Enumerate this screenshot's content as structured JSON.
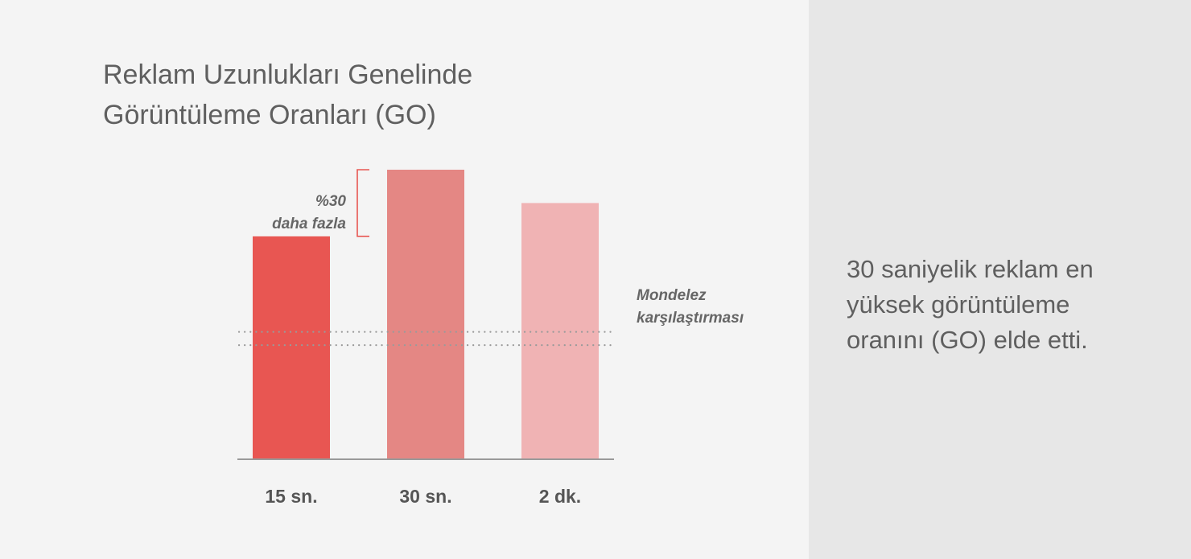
{
  "chart_data": {
    "type": "bar",
    "title_lines": [
      "Reklam Uzunlukları Genelinde",
      "Görüntüleme Oranları (GO)"
    ],
    "categories": [
      "15 sn.",
      "30 sn.",
      "2 dk."
    ],
    "values": [
      1.0,
      1.3,
      1.15
    ],
    "ylim": [
      0,
      1.3
    ],
    "colors": [
      "#e85652",
      "#e48784",
      "#f0b3b4"
    ],
    "benchmark": {
      "label_lines": [
        "Mondelez",
        "karşılaştırması"
      ],
      "range": [
        0.51,
        0.57
      ]
    },
    "annotation": {
      "label_lines": [
        "%30",
        "daha fazla"
      ]
    },
    "grid": false
  },
  "summary": {
    "lines": [
      "30 saniyelik reklam en",
      "yüksek görüntüleme",
      "oranını (GO) elde etti."
    ]
  }
}
